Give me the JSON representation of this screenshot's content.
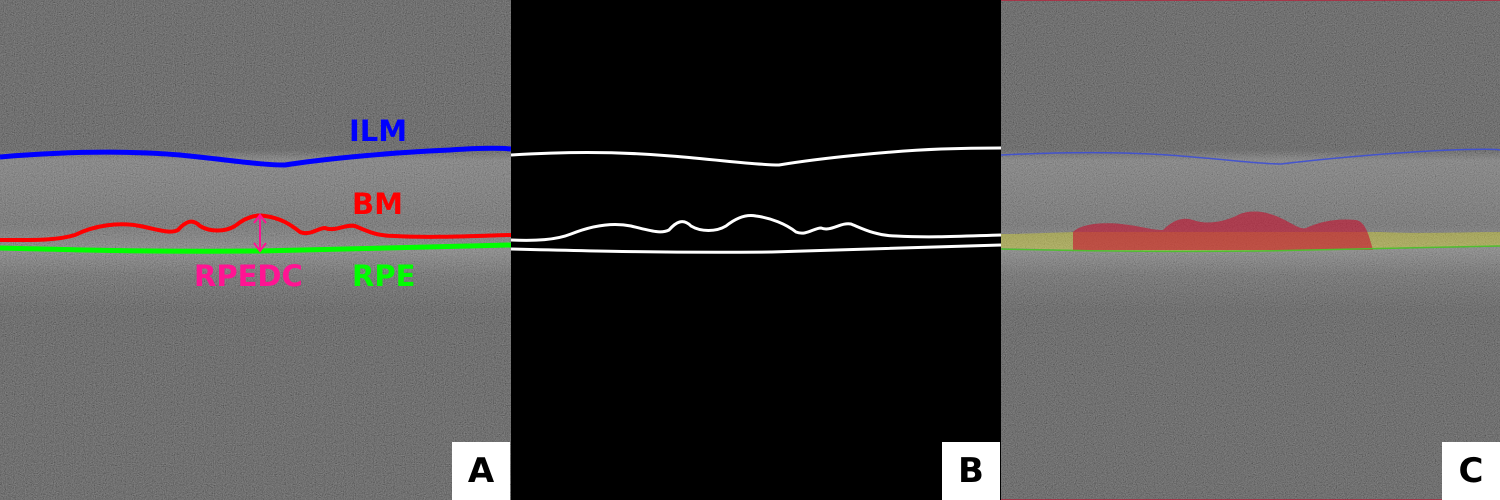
{
  "panels": {
    "a": {
      "letter": "A",
      "labels": {
        "ilm": {
          "text": "ILM",
          "color": "#0000ff"
        },
        "bm": {
          "text": "BM",
          "color": "#ff0000"
        },
        "rpedc": {
          "text": "RPEDC",
          "color": "#ff1493"
        },
        "rpe": {
          "text": "RPE",
          "color": "#00ff00"
        }
      }
    },
    "b": {
      "letter": "B"
    },
    "c": {
      "letter": "C",
      "overlay_colors": {
        "drusen": "#c8102e",
        "rpe_band": "#ffff00",
        "ilm_line": "#3d4fd6",
        "rpe_line": "#4fbf2f"
      }
    }
  }
}
